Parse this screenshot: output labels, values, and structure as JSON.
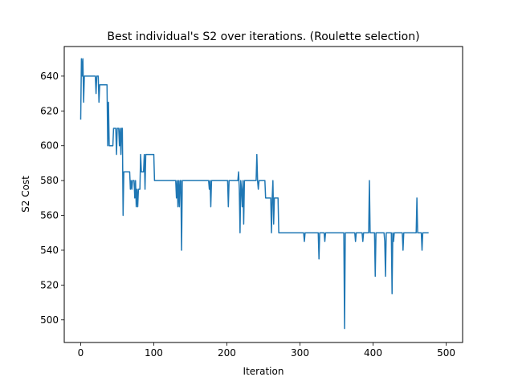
{
  "chart_data": {
    "type": "line",
    "title": "Best individual's S2 over iterations. (Roulette selection)",
    "xlabel": "Iteration",
    "ylabel": "S2 Cost",
    "xlim": [
      -22.5,
      522.5
    ],
    "ylim": [
      487,
      657
    ],
    "xticks": [
      0,
      100,
      200,
      300,
      400,
      500
    ],
    "yticks": [
      500,
      520,
      540,
      560,
      580,
      600,
      620,
      640
    ],
    "grid": false,
    "color": "#1f77b4",
    "series": [
      {
        "points": [
          [
            0,
            615
          ],
          [
            1,
            650
          ],
          [
            2,
            640
          ],
          [
            3,
            650
          ],
          [
            4,
            625
          ],
          [
            5,
            640
          ],
          [
            6,
            640
          ],
          [
            20,
            640
          ],
          [
            21,
            630
          ],
          [
            22,
            640
          ],
          [
            24,
            640
          ],
          [
            25,
            625
          ],
          [
            26,
            635
          ],
          [
            30,
            635
          ],
          [
            36,
            635
          ],
          [
            37,
            600
          ],
          [
            38,
            625
          ],
          [
            39,
            600
          ],
          [
            40,
            600
          ],
          [
            44,
            600
          ],
          [
            45,
            610
          ],
          [
            48,
            610
          ],
          [
            49,
            595
          ],
          [
            50,
            610
          ],
          [
            52,
            610
          ],
          [
            53,
            600
          ],
          [
            54,
            610
          ],
          [
            55,
            595
          ],
          [
            56,
            610
          ],
          [
            57,
            610
          ],
          [
            58,
            560
          ],
          [
            59,
            585
          ],
          [
            60,
            585
          ],
          [
            67,
            585
          ],
          [
            68,
            575
          ],
          [
            69,
            580
          ],
          [
            70,
            575
          ],
          [
            71,
            580
          ],
          [
            73,
            580
          ],
          [
            74,
            570
          ],
          [
            75,
            580
          ],
          [
            76,
            565
          ],
          [
            77,
            575
          ],
          [
            78,
            565
          ],
          [
            79,
            575
          ],
          [
            81,
            575
          ],
          [
            82,
            595
          ],
          [
            83,
            585
          ],
          [
            86,
            585
          ],
          [
            87,
            595
          ],
          [
            88,
            575
          ],
          [
            89,
            595
          ],
          [
            100,
            595
          ],
          [
            101,
            580
          ],
          [
            120,
            580
          ],
          [
            130,
            580
          ],
          [
            131,
            570
          ],
          [
            132,
            580
          ],
          [
            133,
            565
          ],
          [
            134,
            580
          ],
          [
            135,
            565
          ],
          [
            136,
            580
          ],
          [
            137,
            580
          ],
          [
            138,
            540
          ],
          [
            139,
            580
          ],
          [
            150,
            580
          ],
          [
            175,
            580
          ],
          [
            176,
            575
          ],
          [
            177,
            580
          ],
          [
            178,
            565
          ],
          [
            179,
            580
          ],
          [
            190,
            580
          ],
          [
            200,
            580
          ],
          [
            201,
            580
          ],
          [
            202,
            565
          ],
          [
            203,
            580
          ],
          [
            215,
            580
          ],
          [
            216,
            585
          ],
          [
            217,
            575
          ],
          [
            218,
            550
          ],
          [
            219,
            580
          ],
          [
            220,
            575
          ],
          [
            221,
            565
          ],
          [
            222,
            580
          ],
          [
            223,
            555
          ],
          [
            224,
            580
          ],
          [
            235,
            580
          ],
          [
            240,
            580
          ],
          [
            241,
            595
          ],
          [
            242,
            580
          ],
          [
            243,
            575
          ],
          [
            244,
            580
          ],
          [
            252,
            580
          ],
          [
            253,
            570
          ],
          [
            260,
            570
          ],
          [
            261,
            550
          ],
          [
            262,
            570
          ],
          [
            263,
            580
          ],
          [
            264,
            555
          ],
          [
            265,
            570
          ],
          [
            270,
            570
          ],
          [
            271,
            550
          ],
          [
            300,
            550
          ],
          [
            305,
            550
          ],
          [
            306,
            545
          ],
          [
            307,
            550
          ],
          [
            325,
            550
          ],
          [
            326,
            535
          ],
          [
            327,
            550
          ],
          [
            333,
            550
          ],
          [
            334,
            545
          ],
          [
            335,
            550
          ],
          [
            360,
            550
          ],
          [
            361,
            495
          ],
          [
            362,
            550
          ],
          [
            375,
            550
          ],
          [
            376,
            545
          ],
          [
            377,
            550
          ],
          [
            385,
            550
          ],
          [
            386,
            545
          ],
          [
            387,
            550
          ],
          [
            394,
            550
          ],
          [
            395,
            580
          ],
          [
            396,
            550
          ],
          [
            402,
            550
          ],
          [
            403,
            525
          ],
          [
            404,
            550
          ],
          [
            415,
            550
          ],
          [
            416,
            545
          ],
          [
            417,
            525
          ],
          [
            418,
            550
          ],
          [
            425,
            550
          ],
          [
            426,
            515
          ],
          [
            427,
            550
          ],
          [
            428,
            545
          ],
          [
            429,
            550
          ],
          [
            440,
            550
          ],
          [
            441,
            540
          ],
          [
            442,
            550
          ],
          [
            459,
            550
          ],
          [
            460,
            570
          ],
          [
            461,
            550
          ],
          [
            466,
            550
          ],
          [
            467,
            540
          ],
          [
            468,
            550
          ],
          [
            474,
            550
          ],
          [
            475,
            550
          ],
          [
            476,
            550
          ]
        ]
      }
    ]
  }
}
